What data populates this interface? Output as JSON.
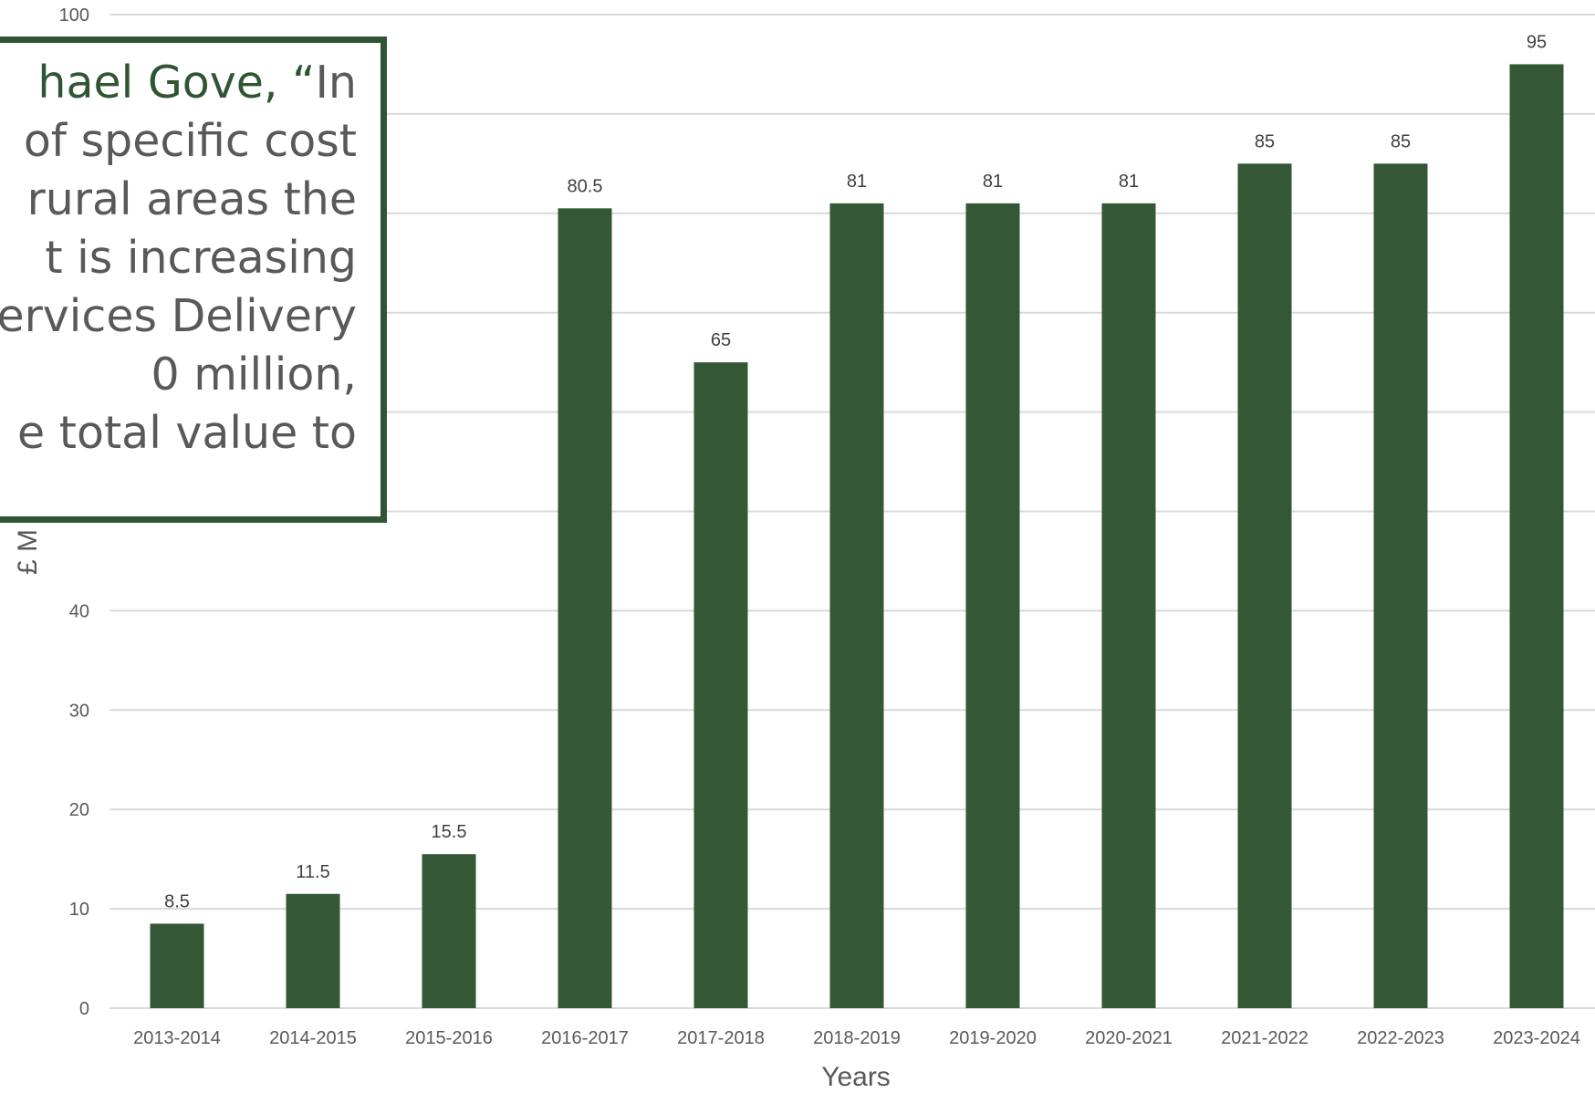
{
  "colors": {
    "bar": "#345736",
    "grid": "#d9d9d9",
    "tick_text": "#595959",
    "label_text": "#404040",
    "box_border": "#2f5533",
    "quote_green": "#2f5533",
    "quote_gray": "#595959"
  },
  "quote": {
    "line1_green": "hael Gove, “",
    "line1_rest": "In",
    "line2": "of specific cost",
    "line3": "rural areas the",
    "line4": "t is increasing",
    "line5": "ervices Delivery",
    "line6": "0 million,",
    "line7": "e total value to"
  },
  "chart_data": {
    "type": "bar",
    "categories": [
      "2013-2014",
      "2014-2015",
      "2015-2016",
      "2016-2017",
      "2017-2018",
      "2018-2019",
      "2019-2020",
      "2020-2021",
      "2021-2022",
      "2022-2023",
      "2023-2024"
    ],
    "values": [
      8.5,
      11.5,
      15.5,
      80.5,
      65,
      81,
      81,
      81,
      85,
      85,
      95
    ],
    "data_labels": [
      "8.5",
      "11.5",
      "15.5",
      "80.5",
      "65",
      "81",
      "81",
      "81",
      "85",
      "85",
      "95"
    ],
    "xlabel": "Years",
    "ylabel_visible": "£ M",
    "ylim": [
      0,
      100
    ],
    "yticks": [
      0,
      10,
      20,
      30,
      40,
      50,
      60,
      70,
      80,
      90,
      100
    ],
    "ytick_labels": [
      "0",
      "10",
      "20",
      "30",
      "40",
      "",
      "",
      "",
      "",
      "",
      "100"
    ],
    "grid": true,
    "legend": "none"
  }
}
